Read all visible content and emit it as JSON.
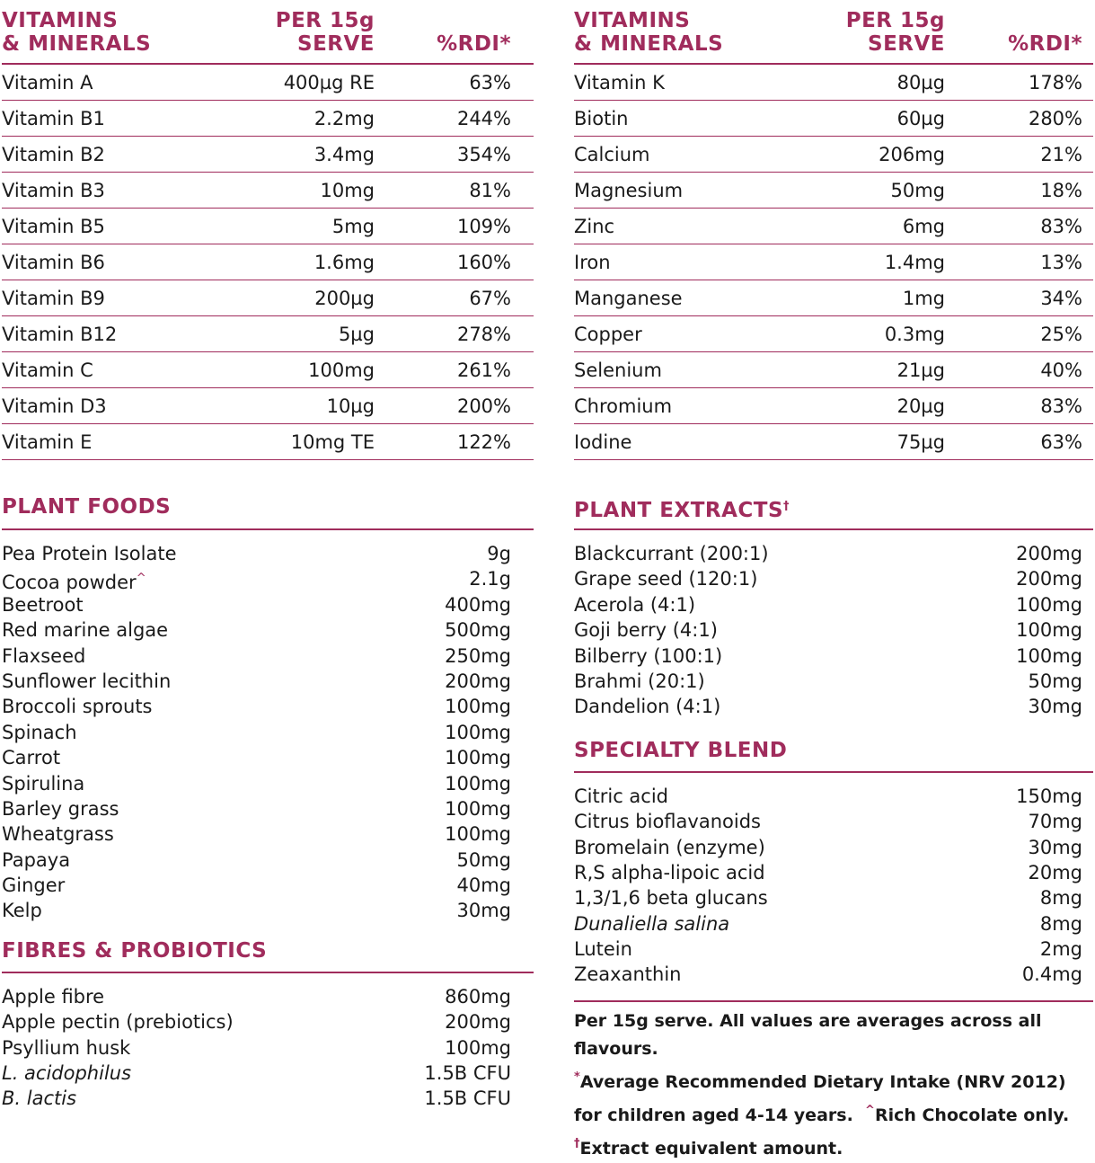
{
  "vitamins_left": {
    "header": {
      "col1_line1": "VITAMINS",
      "col1_line2": "& MINERALS",
      "col2_line1": "PER 15g",
      "col2_line2": "SERVE",
      "col3": "%RDI*"
    },
    "rows": [
      {
        "name": "Vitamin A",
        "amount": "400µg RE",
        "rdi": "63%"
      },
      {
        "name": "Vitamin B1",
        "amount": "2.2mg",
        "rdi": "244%"
      },
      {
        "name": "Vitamin B2",
        "amount": "3.4mg",
        "rdi": "354%"
      },
      {
        "name": "Vitamin B3",
        "amount": "10mg",
        "rdi": "81%"
      },
      {
        "name": "Vitamin B5",
        "amount": "5mg",
        "rdi": "109%"
      },
      {
        "name": "Vitamin B6",
        "amount": "1.6mg",
        "rdi": "160%"
      },
      {
        "name": "Vitamin B9",
        "amount": "200µg",
        "rdi": "67%"
      },
      {
        "name": "Vitamin B12",
        "amount": "5µg",
        "rdi": "278%"
      },
      {
        "name": "Vitamin C",
        "amount": "100mg",
        "rdi": "261%"
      },
      {
        "name": "Vitamin D3",
        "amount": "10µg",
        "rdi": "200%"
      },
      {
        "name": "Vitamin E",
        "amount": "10mg TE",
        "rdi": "122%"
      }
    ]
  },
  "vitamins_right": {
    "header": {
      "col1_line1": "VITAMINS",
      "col1_line2": "& MINERALS",
      "col2_line1": "PER 15g",
      "col2_line2": "SERVE",
      "col3": "%RDI*"
    },
    "rows": [
      {
        "name": "Vitamin K",
        "amount": "80µg",
        "rdi": "178%"
      },
      {
        "name": "Biotin",
        "amount": "60µg",
        "rdi": "280%"
      },
      {
        "name": "Calcium",
        "amount": "206mg",
        "rdi": "21%"
      },
      {
        "name": "Magnesium",
        "amount": "50mg",
        "rdi": "18%"
      },
      {
        "name": "Zinc",
        "amount": "6mg",
        "rdi": "83%"
      },
      {
        "name": "Iron",
        "amount": "1.4mg",
        "rdi": "13%"
      },
      {
        "name": "Manganese",
        "amount": "1mg",
        "rdi": "34%"
      },
      {
        "name": "Copper",
        "amount": "0.3mg",
        "rdi": "25%"
      },
      {
        "name": "Selenium",
        "amount": "21µg",
        "rdi": "40%"
      },
      {
        "name": "Chromium",
        "amount": "20µg",
        "rdi": "83%"
      },
      {
        "name": "Iodine",
        "amount": "75µg",
        "rdi": "63%"
      }
    ]
  },
  "plant_foods": {
    "title": "PLANT FOODS",
    "rows": [
      {
        "name": "Pea Protein Isolate",
        "amount": "9g"
      },
      {
        "name": "Cocoa powder",
        "mark": "^",
        "amount": "2.1g"
      },
      {
        "name": "Beetroot",
        "amount": "400mg"
      },
      {
        "name": "Red marine algae",
        "amount": "500mg"
      },
      {
        "name": "Flaxseed",
        "amount": "250mg"
      },
      {
        "name": "Sunflower lecithin",
        "amount": "200mg"
      },
      {
        "name": "Broccoli sprouts",
        "amount": "100mg"
      },
      {
        "name": "Spinach",
        "amount": "100mg"
      },
      {
        "name": "Carrot",
        "amount": "100mg"
      },
      {
        "name": "Spirulina",
        "amount": "100mg"
      },
      {
        "name": "Barley grass",
        "amount": "100mg"
      },
      {
        "name": "Wheatgrass",
        "amount": "100mg"
      },
      {
        "name": "Papaya",
        "amount": "50mg"
      },
      {
        "name": "Ginger",
        "amount": "40mg"
      },
      {
        "name": "Kelp",
        "amount": "30mg"
      }
    ]
  },
  "fibres": {
    "title": "FIBRES & PROBIOTICS",
    "rows": [
      {
        "name": "Apple fibre",
        "amount": "860mg"
      },
      {
        "name": "Apple pectin (prebiotics)",
        "amount": "200mg"
      },
      {
        "name": "Psyllium husk",
        "amount": "100mg"
      },
      {
        "name": "L. acidophilus",
        "amount": "1.5B CFU",
        "italic": true
      },
      {
        "name": "B. lactis",
        "amount": "1.5B CFU",
        "italic": true
      }
    ]
  },
  "plant_extracts": {
    "title": "PLANT EXTRACTS",
    "title_mark": "†",
    "rows": [
      {
        "name": "Blackcurrant (200:1)",
        "amount": "200mg"
      },
      {
        "name": "Grape seed (120:1)",
        "amount": "200mg"
      },
      {
        "name": "Acerola (4:1)",
        "amount": "100mg"
      },
      {
        "name": "Goji berry (4:1)",
        "amount": "100mg"
      },
      {
        "name": "Bilberry (100:1)",
        "amount": "100mg"
      },
      {
        "name": "Brahmi (20:1)",
        "amount": "50mg"
      },
      {
        "name": "Dandelion (4:1)",
        "amount": "30mg"
      }
    ]
  },
  "specialty": {
    "title": "SPECIALTY BLEND",
    "rows": [
      {
        "name": "Citric acid",
        "amount": "150mg"
      },
      {
        "name": "Citrus bioflavanoids",
        "amount": "70mg"
      },
      {
        "name": "Bromelain (enzyme)",
        "amount": "30mg"
      },
      {
        "name": "R,S alpha-lipoic acid",
        "amount": "20mg"
      },
      {
        "name": "1,3/1,6 beta glucans",
        "amount": "8mg"
      },
      {
        "name": "Dunaliella salina",
        "amount": "8mg",
        "italic": true
      },
      {
        "name": "Lutein",
        "amount": "2mg"
      },
      {
        "name": "Zeaxanthin",
        "amount": "0.4mg"
      }
    ]
  },
  "notes": {
    "line1": "Per 15g serve. All values are averages across all flavours.",
    "line2_mark": "*",
    "line2": "Average Recommended Dietary Intake (NRV 2012)",
    "line3a": "for children aged 4-14 years.",
    "line3_mark": "^",
    "line3b": "Rich Chocolate only.",
    "line4_mark": "†",
    "line4": "Extract equivalent amount."
  },
  "colors": {
    "accent": "#a02c5c",
    "text": "#1a1a1a"
  }
}
